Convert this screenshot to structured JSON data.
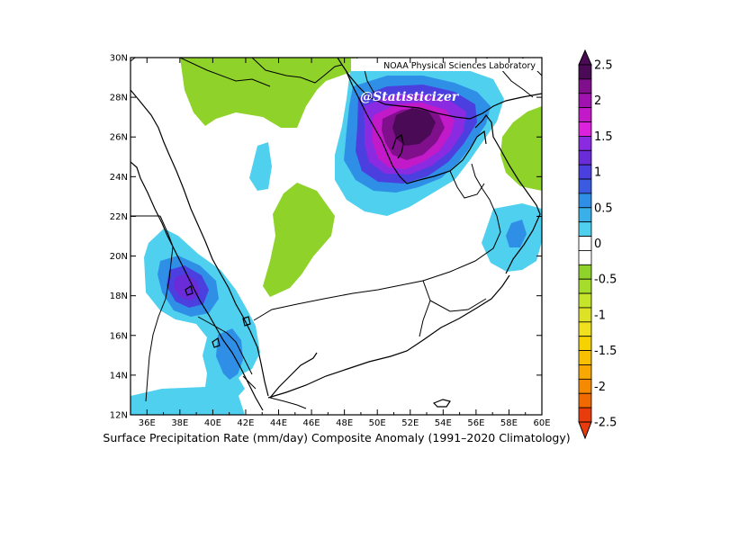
{
  "map": {
    "credit": "NOAA Physical Sciences Laboratory",
    "watermark": "@Statisticizer",
    "caption": "Surface Precipitation Rate (mm/day) Composite Anomaly (1991–2020 Climatology)",
    "lat_ticks": [
      "30N",
      "28N",
      "26N",
      "24N",
      "22N",
      "20N",
      "18N",
      "16N",
      "14N",
      "12N"
    ],
    "lon_ticks": [
      "36E",
      "38E",
      "40E",
      "42E",
      "44E",
      "46E",
      "48E",
      "50E",
      "52E",
      "54E",
      "56E",
      "58E",
      "60E"
    ],
    "lon_range": [
      35,
      60
    ],
    "lat_range": [
      12,
      30
    ]
  },
  "colorbar": {
    "labels": [
      "2.5",
      "2",
      "1.5",
      "1",
      "0.5",
      "0",
      "-0.5",
      "-1",
      "-1.5",
      "-2",
      "-2.5"
    ],
    "colors": [
      "#4a0a55",
      "#7f0f8a",
      "#a012b0",
      "#c219c9",
      "#dc22dc",
      "#8a2be2",
      "#6a2bd8",
      "#4b3fe0",
      "#3a5ae0",
      "#2f8fe6",
      "#39b0e8",
      "#4fd0ee",
      "#ffffff",
      "#ffffff",
      "#8fd22a",
      "#a6dc2a",
      "#c6e42a",
      "#dde227",
      "#f0e01e",
      "#f6d200",
      "#f8c000",
      "#f8a800",
      "#f58a00",
      "#f06a00",
      "#e83c0c"
    ]
  },
  "colors": {
    "ocean_outline": "#000000",
    "green": "#8fd22a",
    "lightblue": "#4fd0ee",
    "blue": "#2f8fe6",
    "purple_dark": "#4a0a55"
  }
}
